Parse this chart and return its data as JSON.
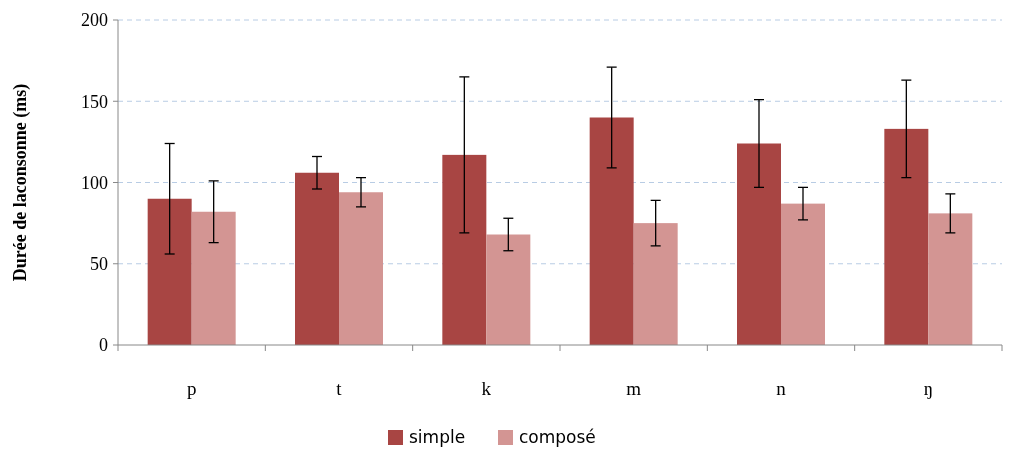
{
  "chart_data": {
    "type": "bar",
    "ylabel": "Durée de laconsonne (ms)",
    "categories": [
      "p",
      "t",
      "k",
      "m",
      "n",
      "ŋ"
    ],
    "series": [
      {
        "name": "simple",
        "color": "#a84543",
        "values": [
          90,
          106,
          117,
          140,
          124,
          133
        ],
        "errors": [
          34,
          10,
          48,
          31,
          27,
          30
        ]
      },
      {
        "name": "composé",
        "color": "#d39593",
        "values": [
          82,
          94,
          68,
          75,
          87,
          81
        ],
        "errors": [
          19,
          9,
          10,
          14,
          10,
          12
        ]
      }
    ],
    "ylim": [
      0,
      200
    ],
    "yticks": [
      0,
      50,
      100,
      150,
      200
    ],
    "grid": "y",
    "legend": "bottom"
  }
}
